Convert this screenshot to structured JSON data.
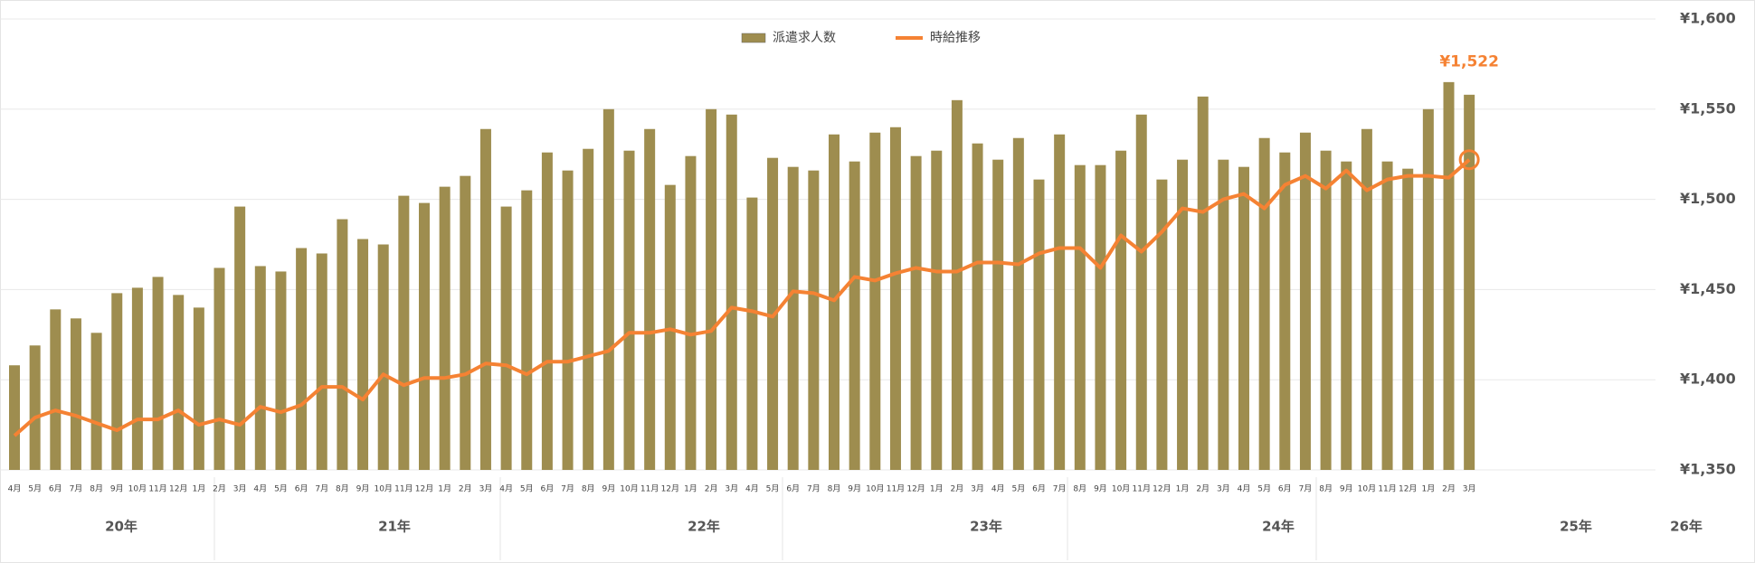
{
  "chart_data": {
    "type": "bar_line",
    "categories": [
      "4月",
      "5月",
      "6月",
      "7月",
      "8月",
      "9月",
      "10月",
      "11月",
      "12月",
      "1月",
      "2月",
      "3月",
      "4月",
      "5月",
      "6月",
      "7月",
      "8月",
      "9月",
      "10月",
      "11月",
      "12月",
      "1月",
      "2月",
      "3月",
      "4月",
      "5月",
      "6月",
      "7月",
      "8月",
      "9月",
      "10月",
      "11月",
      "12月",
      "1月",
      "2月",
      "3月",
      "4月",
      "5月",
      "6月",
      "7月",
      "8月",
      "9月",
      "10月",
      "11月",
      "12月",
      "1月",
      "2月",
      "3月",
      "4月",
      "5月",
      "6月",
      "7月",
      "8月",
      "9月",
      "10月",
      "11月",
      "12月",
      "1月",
      "2月",
      "3月",
      "4月",
      "5月",
      "6月",
      "7月",
      "8月",
      "9月",
      "10月",
      "11月",
      "12月",
      "1月",
      "2月",
      "3月"
    ],
    "year_labels": [
      "20年",
      "21年",
      "22年",
      "23年",
      "24年",
      "25年",
      "26年"
    ],
    "series": [
      {
        "name": "派遣求人数",
        "type": "bar",
        "color": "#9e8d4f",
        "values": [
          1408,
          1419,
          1439,
          1434,
          1426,
          1448,
          1451,
          1457,
          1447,
          1440,
          1462,
          1496,
          1463,
          1460,
          1473,
          1470,
          1489,
          1478,
          1475,
          1502,
          1498,
          1507,
          1513,
          1539,
          1496,
          1505,
          1526,
          1516,
          1528,
          1550,
          1527,
          1539,
          1508,
          1524,
          1550,
          1547,
          1501,
          1523,
          1518,
          1516,
          1536,
          1521,
          1537,
          1540,
          1524,
          1527,
          1555,
          1531,
          1522,
          1534,
          1511,
          1536,
          1519,
          1519,
          1527,
          1547,
          1511,
          1522,
          1557,
          1522,
          1518,
          1534,
          1526,
          1537,
          1527,
          1521,
          1539,
          1521,
          1517,
          1550,
          1565,
          1558
        ]
      },
      {
        "name": "時給推移",
        "type": "line",
        "color": "#f58233",
        "values": [
          1369,
          1379,
          1383,
          1380,
          1376,
          1372,
          1378,
          1378,
          1383,
          1375,
          1378,
          1375,
          1385,
          1382,
          1386,
          1396,
          1396,
          1389,
          1403,
          1397,
          1401,
          1401,
          1403,
          1409,
          1408,
          1403,
          1410,
          1410,
          1413,
          1416,
          1426,
          1426,
          1428,
          1425,
          1427,
          1440,
          1438,
          1435,
          1449,
          1448,
          1444,
          1457,
          1455,
          1459,
          1462,
          1460,
          1460,
          1465,
          1465,
          1464,
          1470,
          1473,
          1473,
          1462,
          1480,
          1471,
          1482,
          1495,
          1493,
          1500,
          1503,
          1495,
          1508,
          1513,
          1506,
          1516,
          1505,
          1511,
          1513,
          1513,
          1512,
          1522
        ],
        "value_labels": [
          null,
          null,
          null,
          null,
          null,
          null,
          null,
          null,
          null,
          null,
          null,
          null,
          null,
          null,
          null,
          null,
          null,
          null,
          null,
          null,
          null,
          null,
          null,
          null,
          null,
          null,
          null,
          null,
          null,
          null,
          null,
          null,
          null,
          null,
          null,
          null,
          null,
          null,
          null,
          null,
          null,
          null,
          null,
          null,
          null,
          null,
          null,
          null,
          null,
          null,
          null,
          null,
          null,
          null,
          null,
          null,
          null,
          null,
          null,
          null,
          null,
          null,
          null,
          null,
          null,
          null,
          null,
          null,
          null,
          null,
          null,
          "¥1,522"
        ]
      }
    ],
    "ylim": [
      1350,
      1600
    ],
    "yticks": [
      {
        "value": 1350,
        "label": "¥1,350"
      },
      {
        "value": 1400,
        "label": "¥1,400"
      },
      {
        "value": 1450,
        "label": "¥1,450"
      },
      {
        "value": 1500,
        "label": "¥1,500"
      },
      {
        "value": 1550,
        "label": "¥1,550"
      },
      {
        "value": 1600,
        "label": "¥1,600"
      }
    ],
    "grid": true,
    "legend": "top"
  }
}
